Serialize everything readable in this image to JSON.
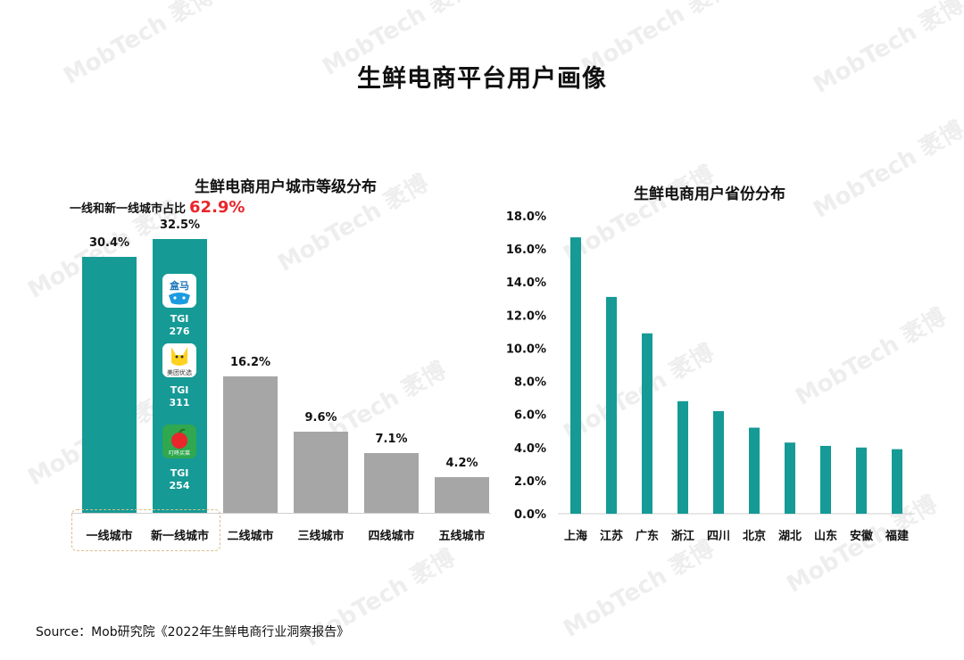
{
  "title": "生鲜电商平台用户画像",
  "watermark": "MobTech 袤博",
  "left_chart": {
    "title": "生鲜电商用户城市等级分布",
    "highlight_label": "一线和新一线城市占比",
    "highlight_value": "62.9%",
    "apps": [
      {
        "icon": "hema-icon",
        "name": "盒马",
        "tgi_label": "TGI",
        "tgi_value": "276"
      },
      {
        "icon": "meituan-youxuan-icon",
        "name": "美团优选",
        "tgi_label": "TGI",
        "tgi_value": "311"
      },
      {
        "icon": "dingdong-maicai-icon",
        "name": "叮咚买菜",
        "tgi_label": "TGI",
        "tgi_value": "254"
      }
    ]
  },
  "right_chart": {
    "title": "生鲜电商用户省份分布"
  },
  "chart_data": [
    {
      "type": "bar",
      "title": "生鲜电商用户城市等级分布",
      "categories": [
        "一线城市",
        "新一线城市",
        "二线城市",
        "三线城市",
        "四线城市",
        "五线城市"
      ],
      "values": [
        30.4,
        32.5,
        16.2,
        9.6,
        7.1,
        4.2
      ],
      "value_labels": [
        "30.4%",
        "32.5%",
        "16.2%",
        "9.6%",
        "7.1%",
        "4.2%"
      ],
      "colors": [
        "#159a96",
        "#159a96",
        "#a6a6a6",
        "#a6a6a6",
        "#a6a6a6",
        "#a6a6a6"
      ],
      "ylim": [
        0,
        32.5
      ]
    },
    {
      "type": "bar",
      "title": "生鲜电商用户省份分布",
      "categories": [
        "上海",
        "江苏",
        "广东",
        "浙江",
        "四川",
        "北京",
        "湖北",
        "山东",
        "安徽",
        "福建"
      ],
      "values": [
        16.7,
        13.1,
        10.9,
        6.8,
        6.2,
        5.2,
        4.3,
        4.1,
        4.0,
        3.9
      ],
      "ylim": [
        0,
        18
      ],
      "yticks": [
        "0.0%",
        "2.0%",
        "4.0%",
        "6.0%",
        "8.0%",
        "10.0%",
        "12.0%",
        "14.0%",
        "16.0%",
        "18.0%"
      ],
      "color": "#159a96",
      "grid": false
    }
  ],
  "source": "Source：Mob研究院《2022年生鲜电商行业洞察报告》"
}
